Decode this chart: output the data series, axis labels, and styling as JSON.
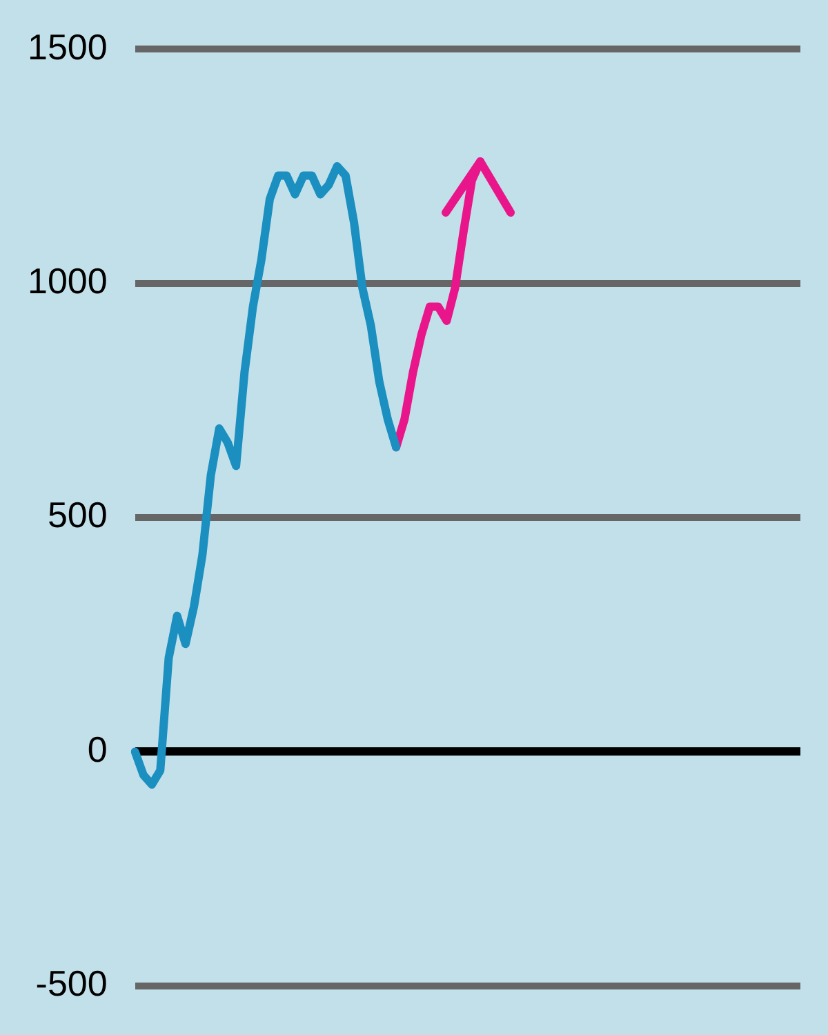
{
  "chart_data": {
    "type": "line",
    "categories": [
      null,
      null,
      null,
      null,
      null,
      null,
      null,
      null,
      null,
      null,
      null,
      null,
      null,
      null,
      null,
      null,
      null,
      null,
      null,
      null,
      null,
      null,
      null,
      null,
      null,
      null,
      null,
      null,
      null,
      null,
      null,
      null,
      null,
      null,
      null,
      null,
      null,
      null,
      null,
      null,
      null,
      null,
      null,
      null,
      null,
      null,
      null,
      null,
      null,
      null,
      null,
      null,
      null,
      null,
      null,
      null,
      null,
      null,
      null,
      null,
      null,
      null,
      null,
      null,
      null,
      null,
      null,
      null,
      null,
      null,
      null,
      null,
      null,
      null,
      null,
      null,
      null,
      null,
      null,
      null
    ],
    "series": [
      {
        "color": "#1a8fc0",
        "values": [
          0,
          -50,
          -70,
          -40,
          200,
          290,
          230,
          310,
          420,
          590,
          690,
          660,
          610,
          810,
          950,
          1050,
          1180,
          1230,
          1230,
          1190,
          1230,
          1230,
          1190,
          1210,
          1250,
          1230,
          1130,
          990,
          910,
          790,
          710,
          650,
          null,
          null,
          null,
          null,
          null,
          null,
          null,
          null,
          null,
          null,
          null,
          null,
          null,
          null,
          null,
          null,
          null,
          null,
          null,
          null,
          null,
          null,
          null,
          null,
          null,
          null,
          null,
          null,
          null,
          null,
          null,
          null,
          null,
          null,
          null,
          null,
          null,
          null,
          null,
          null,
          null,
          null,
          null,
          null,
          null,
          null,
          null,
          null
        ]
      },
      {
        "color": "#e8168a",
        "values": [
          null,
          null,
          null,
          null,
          null,
          null,
          null,
          null,
          null,
          null,
          null,
          null,
          null,
          null,
          null,
          null,
          null,
          null,
          null,
          null,
          null,
          null,
          null,
          null,
          null,
          null,
          null,
          null,
          null,
          null,
          null,
          650,
          710,
          810,
          890,
          950,
          950,
          920,
          990,
          1110,
          1220,
          1260,
          null,
          null,
          null,
          null,
          null,
          null,
          null,
          null,
          null,
          null,
          null,
          null,
          null,
          null,
          null,
          null,
          null,
          null,
          null,
          null,
          null,
          null,
          null,
          null,
          null,
          null,
          null,
          null,
          null,
          null,
          null,
          null,
          null,
          null,
          null,
          null,
          null,
          null
        ]
      }
    ],
    "ylim": [
      -500,
      1500
    ],
    "yticks": [
      -500,
      0,
      500,
      1000,
      1500
    ],
    "grid": "y",
    "tick_labels": "y",
    "marker": "none",
    "line_style": "solid"
  }
}
